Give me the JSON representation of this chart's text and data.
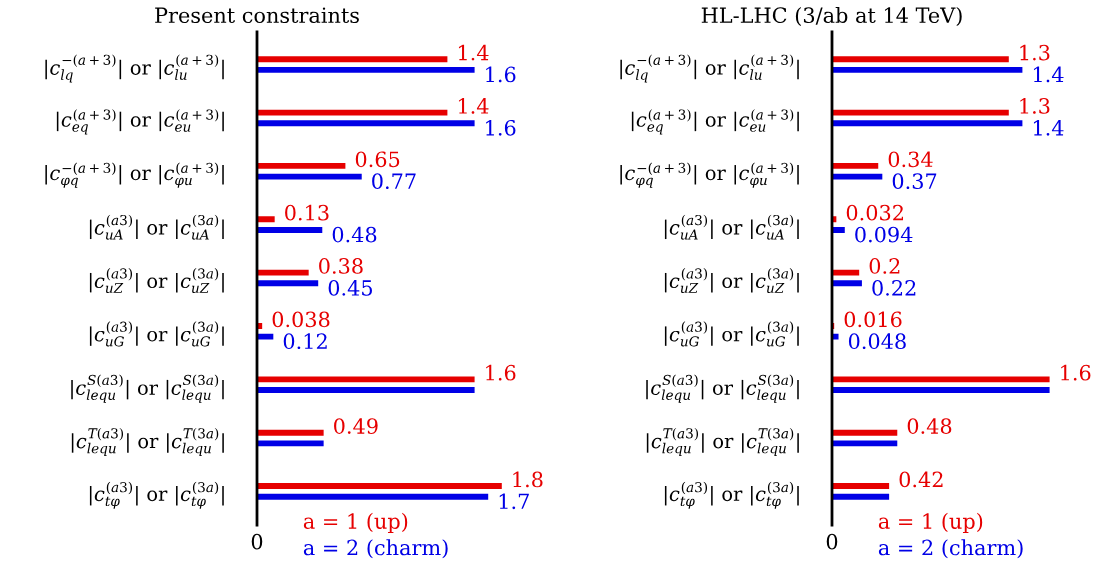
{
  "chart_data": [
    {
      "type": "bar",
      "orientation": "horizontal",
      "title": "Present constraints",
      "categories": [
        "|c$^{−(a+3)}$$_{lq}$| or |c$^{(a+3)}$$_{lu}$|",
        "|c$^{(a+3)}$$_{eq}$| or |c$^{(a+3)}$$_{eu}$|",
        "|c$^{−(a+3)}$$_{φq}$| or |c$^{(a+3)}$$_{φu}$|",
        "|c$^{(a3)}$$_{uA}$| or |c$^{(3a)}$$_{uA}$|",
        "|c$^{(a3)}$$_{uZ}$| or |c$^{(3a)}$$_{uZ}$|",
        "|c$^{(a3)}$$_{uG}$| or |c$^{(3a)}$$_{uG}$|",
        "|c$^{S(a3)}$$_{lequ}$| or |c$^{S(3a)}$$_{lequ}$|",
        "|c$^{T(a3)}$$_{lequ}$| or |c$^{T(3a)}$$_{lequ}$|",
        "|c$^{(a3)}$$_{tφ}$| or |c$^{(3a)}$$_{tφ}$|"
      ],
      "series": [
        {
          "name": "a = 1 (up)",
          "color": "#e60000",
          "values": [
            1.4,
            1.4,
            0.65,
            0.13,
            0.38,
            0.038,
            1.6,
            0.49,
            1.8
          ],
          "value_labels": [
            "1.4",
            "1.4",
            "0.65",
            "0.13",
            "0.38",
            "0.038",
            "1.6",
            "0.49",
            "1.8"
          ]
        },
        {
          "name": "a = 2 (charm)",
          "color": "#0000e6",
          "values": [
            1.6,
            1.6,
            0.77,
            0.48,
            0.45,
            0.12,
            1.6,
            0.49,
            1.7
          ],
          "value_labels": [
            "1.6",
            "1.6",
            "0.77",
            "0.48",
            "0.45",
            "0.12",
            null,
            null,
            "1.7"
          ]
        }
      ],
      "annotations": [
        "0"
      ],
      "legend": "bottom"
    },
    {
      "type": "bar",
      "orientation": "horizontal",
      "title": "HL-LHC (3/ab at 14 TeV)",
      "categories": [
        "|c$^{−(a+3)}$$_{lq}$| or |c$^{(a+3)}$$_{lu}$|",
        "|c$^{(a+3)}$$_{eq}$| or |c$^{(a+3)}$$_{eu}$|",
        "|c$^{−(a+3)}$$_{φq}$| or |c$^{(a+3)}$$_{φu}$|",
        "|c$^{(a3)}$$_{uA}$| or |c$^{(3a)}$$_{uA}$|",
        "|c$^{(a3)}$$_{uZ}$| or |c$^{(3a)}$$_{uZ}$|",
        "|c$^{(a3)}$$_{uG}$| or |c$^{(3a)}$$_{uG}$|",
        "|c$^{S(a3)}$$_{lequ}$| or |c$^{S(3a)}$$_{lequ}$|",
        "|c$^{T(a3)}$$_{lequ}$| or |c$^{T(3a)}$$_{lequ}$|",
        "|c$^{(a3)}$$_{tφ}$| or |c$^{(3a)}$$_{tφ}$|"
      ],
      "series": [
        {
          "name": "a = 1 (up)",
          "color": "#e60000",
          "values": [
            1.3,
            1.3,
            0.34,
            0.032,
            0.2,
            0.016,
            1.6,
            0.48,
            0.42
          ],
          "value_labels": [
            "1.3",
            "1.3",
            "0.34",
            "0.032",
            "0.2",
            "0.016",
            "1.6",
            "0.48",
            "0.42"
          ]
        },
        {
          "name": "a = 2 (charm)",
          "color": "#0000e6",
          "values": [
            1.4,
            1.4,
            0.37,
            0.094,
            0.22,
            0.048,
            1.6,
            0.48,
            0.42
          ],
          "value_labels": [
            "1.4",
            "1.4",
            "0.37",
            "0.094",
            "0.22",
            "0.048",
            null,
            null,
            null
          ]
        }
      ],
      "annotations": [
        "0"
      ],
      "legend": "bottom"
    }
  ]
}
